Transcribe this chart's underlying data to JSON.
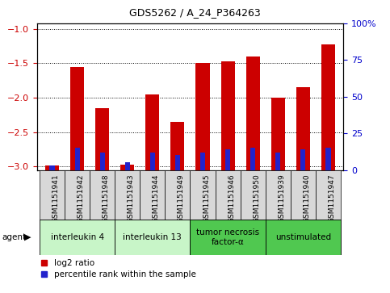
{
  "title": "GDS5262 / A_24_P364263",
  "samples": [
    "GSM1151941",
    "GSM1151942",
    "GSM1151948",
    "GSM1151943",
    "GSM1151944",
    "GSM1151949",
    "GSM1151945",
    "GSM1151946",
    "GSM1151950",
    "GSM1151939",
    "GSM1151940",
    "GSM1151947"
  ],
  "log2_ratio": [
    -2.98,
    -1.55,
    -2.15,
    -2.97,
    -1.95,
    -2.35,
    -1.5,
    -1.47,
    -1.4,
    -2.0,
    -1.85,
    -1.22
  ],
  "percentile": [
    3,
    15,
    12,
    5,
    12,
    10,
    12,
    14,
    15,
    12,
    14,
    15
  ],
  "agents": [
    {
      "label": "interleukin 4",
      "start": 0,
      "end": 3,
      "color": "#c8f5c8"
    },
    {
      "label": "interleukin 13",
      "start": 3,
      "end": 6,
      "color": "#c8f5c8"
    },
    {
      "label": "tumor necrosis\nfactor-α",
      "start": 6,
      "end": 9,
      "color": "#50c850"
    },
    {
      "label": "unstimulated",
      "start": 9,
      "end": 12,
      "color": "#50c850"
    }
  ],
  "ylim_left": [
    -3.05,
    -0.92
  ],
  "ylim_right": [
    0,
    100
  ],
  "yticks_left": [
    -3.0,
    -2.5,
    -2.0,
    -1.5,
    -1.0
  ],
  "yticks_right": [
    0,
    25,
    50,
    75,
    100
  ],
  "bar_color_red": "#cc0000",
  "bar_color_blue": "#2222cc",
  "bar_width": 0.55,
  "percentile_bar_width": 0.2,
  "bg_color": "#d8d8d8",
  "left_tick_color": "#cc0000",
  "right_tick_color": "#0000cc"
}
